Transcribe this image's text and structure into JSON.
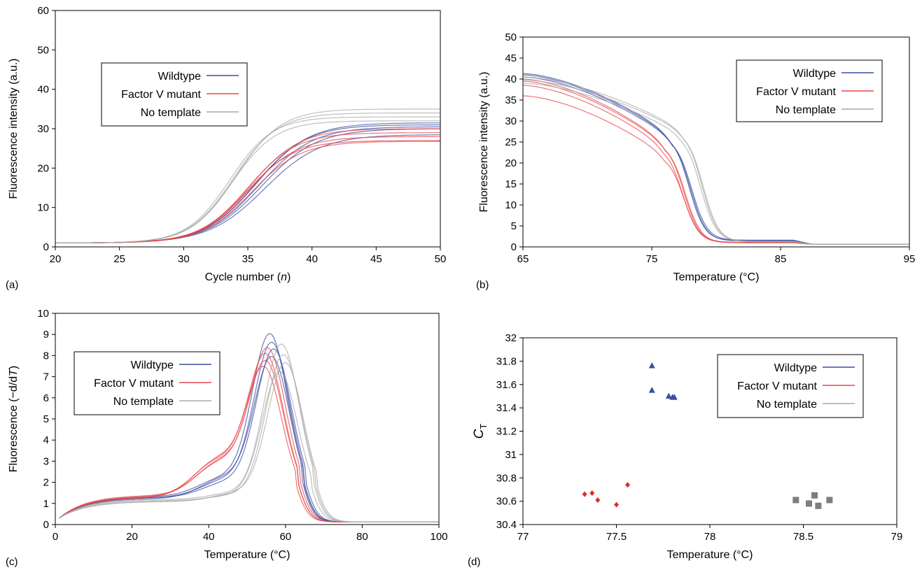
{
  "colors": {
    "wildtype": "#3b4ea0",
    "mutant": "#e8464a",
    "notemplate": "#a9a9a9",
    "mutant_marker": "#e02a2a",
    "notemplate_marker": "#7d7d7d"
  },
  "legend": {
    "items": [
      "Wildtype",
      "Factor V mutant",
      "No template"
    ]
  },
  "chart_data": [
    {
      "panel": "(a)",
      "type": "line",
      "xlabel": "Cycle number (n)",
      "ylabel": "Fluorescence intensity (a.u.)",
      "xlim": [
        20,
        50
      ],
      "ylim": [
        0,
        60
      ],
      "xticks": [
        20,
        25,
        30,
        35,
        40,
        45,
        50
      ],
      "yticks": [
        0,
        10,
        20,
        30,
        40,
        50,
        60
      ],
      "legend_position": "upper-left",
      "series": [
        {
          "name": "Wildtype",
          "curves": [
            {
              "base": 1,
              "plateau": 31,
              "mid": 35.6,
              "k": 0.5
            },
            {
              "base": 1,
              "plateau": 30.5,
              "mid": 35.9,
              "k": 0.48
            },
            {
              "base": 1,
              "plateau": 31.5,
              "mid": 35.7,
              "k": 0.49
            },
            {
              "base": 1,
              "plateau": 30,
              "mid": 36.1,
              "k": 0.47
            },
            {
              "base": 1,
              "plateau": 28.5,
              "mid": 36.3,
              "k": 0.46
            }
          ]
        },
        {
          "name": "Factor V mutant",
          "curves": [
            {
              "base": 1,
              "plateau": 30,
              "mid": 35.2,
              "k": 0.52
            },
            {
              "base": 1,
              "plateau": 29,
              "mid": 35.0,
              "k": 0.53
            },
            {
              "base": 1,
              "plateau": 28,
              "mid": 35.1,
              "k": 0.52
            },
            {
              "base": 1,
              "plateau": 27,
              "mid": 34.9,
              "k": 0.54
            },
            {
              "base": 1,
              "plateau": 26.8,
              "mid": 35.3,
              "k": 0.52
            }
          ]
        },
        {
          "name": "No template",
          "curves": [
            {
              "base": 1,
              "plateau": 33,
              "mid": 33.6,
              "k": 0.6
            },
            {
              "base": 1,
              "plateau": 34,
              "mid": 33.9,
              "k": 0.58
            },
            {
              "base": 1,
              "plateau": 32,
              "mid": 33.8,
              "k": 0.59
            },
            {
              "base": 1,
              "plateau": 35,
              "mid": 34.1,
              "k": 0.57
            }
          ]
        }
      ]
    },
    {
      "panel": "(b)",
      "type": "line",
      "xlabel": "Temperature (°C)",
      "ylabel": "Fluorescence intensity (a.u.)",
      "xlim": [
        65,
        95
      ],
      "ylim": [
        0,
        50
      ],
      "xticks": [
        65,
        75,
        85,
        95
      ],
      "yticks": [
        0,
        5,
        10,
        15,
        20,
        25,
        30,
        35,
        40,
        45,
        50
      ],
      "legend_position": "upper-right",
      "series": [
        {
          "name": "Wildtype",
          "curves": [
            {
              "start": 41.3,
              "shoulder": 27,
              "tm": 77.9,
              "w": 0.6,
              "tail": 1.5
            },
            {
              "start": 41,
              "shoulder": 26.5,
              "tm": 78.0,
              "w": 0.6,
              "tail": 1.4
            },
            {
              "start": 40.5,
              "shoulder": 26,
              "tm": 78.1,
              "w": 0.6,
              "tail": 1.6
            }
          ]
        },
        {
          "name": "Factor V mutant",
          "curves": [
            {
              "start": 40,
              "shoulder": 25,
              "tm": 77.5,
              "w": 0.6,
              "tail": 1.0
            },
            {
              "start": 39.5,
              "shoulder": 24.5,
              "tm": 77.6,
              "w": 0.6,
              "tail": 1.0
            },
            {
              "start": 38.5,
              "shoulder": 24,
              "tm": 77.4,
              "w": 0.6,
              "tail": 1.1
            },
            {
              "start": 36,
              "shoulder": 22,
              "tm": 77.5,
              "w": 0.6,
              "tail": 1.0
            }
          ]
        },
        {
          "name": "No template",
          "curves": [
            {
              "start": 40.5,
              "shoulder": 28,
              "tm": 78.9,
              "w": 0.6,
              "tail": 1.2
            },
            {
              "start": 39.8,
              "shoulder": 27.5,
              "tm": 79.0,
              "w": 0.6,
              "tail": 1.2
            },
            {
              "start": 39,
              "shoulder": 27,
              "tm": 78.8,
              "w": 0.6,
              "tail": 1.3
            }
          ]
        }
      ]
    },
    {
      "panel": "(c)",
      "type": "line",
      "xlabel": "Temperature (°C)",
      "ylabel": "Fluorescence (−d/dT)",
      "xlim": [
        0,
        100
      ],
      "ylim": [
        0,
        10
      ],
      "xticks": [
        0,
        20,
        40,
        60,
        80,
        100
      ],
      "yticks": [
        0,
        1,
        2,
        3,
        4,
        5,
        6,
        7,
        8,
        9,
        10
      ],
      "legend_position": "upper-left",
      "series": [
        {
          "name": "Wildtype",
          "curves": [
            {
              "peak": 8.9,
              "pos": 56,
              "floor": 1.35,
              "shoulder": 2.2
            },
            {
              "peak": 8.5,
              "pos": 56.5,
              "floor": 1.3,
              "shoulder": 2.1
            },
            {
              "peak": 8.2,
              "pos": 57,
              "floor": 1.3,
              "shoulder": 2.0
            },
            {
              "peak": 7.8,
              "pos": 56.5,
              "floor": 1.25,
              "shoulder": 2.2
            }
          ]
        },
        {
          "name": "Factor V mutant",
          "curves": [
            {
              "peak": 8.1,
              "pos": 55.5,
              "floor": 1.4,
              "shoulder": 3.0
            },
            {
              "peak": 7.8,
              "pos": 55,
              "floor": 1.35,
              "shoulder": 3.1
            },
            {
              "peak": 7.5,
              "pos": 55,
              "floor": 1.35,
              "shoulder": 2.9
            },
            {
              "peak": 7.2,
              "pos": 54.5,
              "floor": 1.3,
              "shoulder": 3.0
            }
          ]
        },
        {
          "name": "No template",
          "curves": [
            {
              "peak": 8.5,
              "pos": 59,
              "floor": 1.2,
              "shoulder": 1.5
            },
            {
              "peak": 8.0,
              "pos": 59.5,
              "floor": 1.15,
              "shoulder": 1.4
            },
            {
              "peak": 7.6,
              "pos": 60,
              "floor": 1.1,
              "shoulder": 1.5
            },
            {
              "peak": 7.2,
              "pos": 58.5,
              "floor": 1.1,
              "shoulder": 1.4
            }
          ]
        }
      ]
    },
    {
      "panel": "(d)",
      "type": "scatter",
      "xlabel": "Temperature (°C)",
      "ylabel_main": "C",
      "ylabel_sub": "T",
      "xlim": [
        77,
        79
      ],
      "ylim": [
        30.4,
        32
      ],
      "xticks": [
        77,
        77.5,
        78,
        78.5,
        79
      ],
      "yticks": [
        30.4,
        30.6,
        30.8,
        31,
        31.2,
        31.4,
        31.6,
        31.8,
        32
      ],
      "ytick_labels": [
        "30.4",
        "30.6",
        "30.8",
        "31",
        "31.2",
        "31.4",
        "31.6",
        "31.8",
        "32"
      ],
      "legend_position": "upper-right",
      "series": [
        {
          "name": "Wildtype",
          "marker": "triangle",
          "points": [
            [
              77.69,
              31.76
            ],
            [
              77.69,
              31.55
            ],
            [
              77.78,
              31.5
            ],
            [
              77.8,
              31.49
            ],
            [
              77.81,
              31.49
            ]
          ]
        },
        {
          "name": "Factor V mutant",
          "marker": "diamond",
          "points": [
            [
              77.33,
              30.66
            ],
            [
              77.37,
              30.67
            ],
            [
              77.4,
              30.61
            ],
            [
              77.5,
              30.57
            ],
            [
              77.56,
              30.74
            ]
          ]
        },
        {
          "name": "No template",
          "marker": "square",
          "points": [
            [
              78.46,
              30.61
            ],
            [
              78.53,
              30.58
            ],
            [
              78.56,
              30.65
            ],
            [
              78.58,
              30.56
            ],
            [
              78.64,
              30.61
            ]
          ]
        }
      ]
    }
  ]
}
